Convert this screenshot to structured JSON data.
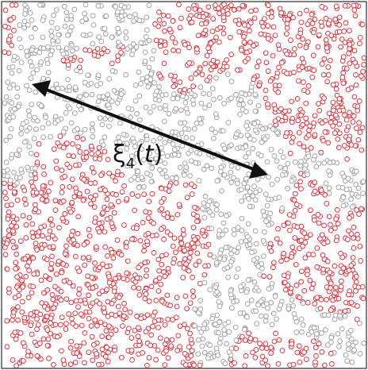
{
  "figure": {
    "description_label": {
      "symbol": "ξ",
      "subscript": "4",
      "open_paren": "(",
      "variable": "t",
      "close_paren": ")"
    },
    "colors": {
      "mobile_particle": "#e8202a",
      "immobile_particle": "#9a9a9a",
      "mobile_fill": "#ffffff",
      "immobile_fill": "#ffffff",
      "arrow": "#111111",
      "frame": "#555555"
    },
    "particle_count_estimate": 2600
  }
}
